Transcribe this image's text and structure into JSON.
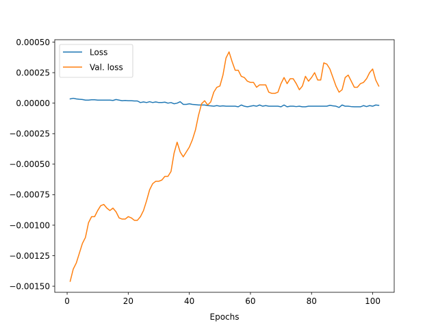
{
  "chart_data": {
    "type": "line",
    "title": "",
    "xlabel": "Epochs",
    "ylabel": "",
    "xlim": [
      -4.05,
      107.05
    ],
    "ylim": [
      -0.00155,
      0.00052
    ],
    "xticks": [
      0,
      20,
      40,
      60,
      80,
      100
    ],
    "xtick_labels": [
      "0",
      "20",
      "40",
      "60",
      "80",
      "100"
    ],
    "yticks": [
      -0.0015,
      -0.00125,
      -0.001,
      -0.00075,
      -0.0005,
      -0.00025,
      0.0,
      0.00025,
      0.0005
    ],
    "ytick_labels": [
      "−0.00150",
      "−0.00125",
      "−0.00100",
      "−0.00075",
      "−0.00050",
      "−0.00025",
      "0.00000",
      "0.00025",
      "0.00050"
    ],
    "grid": false,
    "legend_position": "upper left",
    "colors": {
      "loss": "#1f77b4",
      "val_loss": "#ff7f0e"
    },
    "series": [
      {
        "name": "Loss",
        "color": "#1f77b4",
        "x": [
          1,
          2,
          3,
          4,
          5,
          6,
          7,
          8,
          9,
          10,
          11,
          12,
          13,
          14,
          15,
          16,
          17,
          18,
          19,
          20,
          21,
          22,
          23,
          24,
          25,
          26,
          27,
          28,
          29,
          30,
          31,
          32,
          33,
          34,
          35,
          36,
          37,
          38,
          39,
          40,
          41,
          42,
          43,
          44,
          45,
          46,
          47,
          48,
          49,
          50,
          51,
          52,
          53,
          54,
          55,
          56,
          57,
          58,
          59,
          60,
          61,
          62,
          63,
          64,
          65,
          66,
          67,
          68,
          69,
          70,
          71,
          72,
          73,
          74,
          75,
          76,
          77,
          78,
          79,
          80,
          81,
          82,
          83,
          84,
          85,
          86,
          87,
          88,
          89,
          90,
          91,
          92,
          93,
          94,
          95,
          96,
          97,
          98,
          99,
          100,
          101,
          102
        ],
        "y": [
          3.5e-05,
          4e-05,
          3.5e-05,
          3.2e-05,
          3e-05,
          2.5e-05,
          2.5e-05,
          2.8e-05,
          2.8e-05,
          2.5e-05,
          2.5e-05,
          2.5e-05,
          2.5e-05,
          2.5e-05,
          2.2e-05,
          3e-05,
          2.5e-05,
          2e-05,
          2.2e-05,
          2e-05,
          2e-05,
          1.8e-05,
          1.8e-05,
          5e-06,
          1e-05,
          5e-06,
          1.2e-05,
          5e-06,
          1e-05,
          5e-06,
          5e-06,
          8e-06,
          0.0,
          5e-06,
          -5e-06,
          0.0,
          1.2e-05,
          -1e-05,
          -1e-05,
          -5e-06,
          -1e-05,
          -1.2e-05,
          -1.5e-05,
          -1.5e-05,
          -1.5e-05,
          -2e-05,
          -2.2e-05,
          -2.5e-05,
          -2e-05,
          -2.5e-05,
          -2.2e-05,
          -2.5e-05,
          -2.5e-05,
          -2.5e-05,
          -2.5e-05,
          -3e-05,
          -1.5e-05,
          -2.5e-05,
          -3e-05,
          -2.5e-05,
          -2e-05,
          -2.5e-05,
          -1.5e-05,
          -2.5e-05,
          -2e-05,
          -2.5e-05,
          -2.5e-05,
          -2.5e-05,
          -2.5e-05,
          -3e-05,
          -1.5e-05,
          -3e-05,
          -2.5e-05,
          -2.5e-05,
          -2.8e-05,
          -2.5e-05,
          -3e-05,
          -3e-05,
          -2.5e-05,
          -2.5e-05,
          -2.5e-05,
          -2.5e-05,
          -2.5e-05,
          -2.5e-05,
          -2.5e-05,
          -1.8e-05,
          -2.2e-05,
          -2.5e-05,
          -3.5e-05,
          -1.5e-05,
          -2.5e-05,
          -2.5e-05,
          -2.8e-05,
          -3e-05,
          -3e-05,
          -3e-05,
          -2e-05,
          -2.8e-05,
          -2e-05,
          -2.5e-05,
          -1.5e-05,
          -1.8e-05
        ]
      },
      {
        "name": "Val. loss",
        "color": "#ff7f0e",
        "x": [
          1,
          2,
          3,
          4,
          5,
          6,
          7,
          8,
          9,
          10,
          11,
          12,
          13,
          14,
          15,
          16,
          17,
          18,
          19,
          20,
          21,
          22,
          23,
          24,
          25,
          26,
          27,
          28,
          29,
          30,
          31,
          32,
          33,
          34,
          35,
          36,
          37,
          38,
          39,
          40,
          41,
          42,
          43,
          44,
          45,
          46,
          47,
          48,
          49,
          50,
          51,
          52,
          53,
          54,
          55,
          56,
          57,
          58,
          59,
          60,
          61,
          62,
          63,
          64,
          65,
          66,
          67,
          68,
          69,
          70,
          71,
          72,
          73,
          74,
          75,
          76,
          77,
          78,
          79,
          80,
          81,
          82,
          83,
          84,
          85,
          86,
          87,
          88,
          89,
          90,
          91,
          92,
          93,
          94,
          95,
          96,
          97,
          98,
          99,
          100,
          101,
          102
        ],
        "y": [
          -0.00146,
          -0.00136,
          -0.00131,
          -0.00123,
          -0.00115,
          -0.0011,
          -0.00098,
          -0.00093,
          -0.00093,
          -0.00088,
          -0.00084,
          -0.00083,
          -0.00086,
          -0.00088,
          -0.00086,
          -0.00089,
          -0.00094,
          -0.00095,
          -0.00095,
          -0.00093,
          -0.00094,
          -0.00096,
          -0.00096,
          -0.00093,
          -0.00088,
          -0.0008,
          -0.00071,
          -0.00066,
          -0.00064,
          -0.00064,
          -0.00063,
          -0.0006,
          -0.0006,
          -0.00056,
          -0.00041,
          -0.00032,
          -0.0004,
          -0.00044,
          -0.0004,
          -0.00036,
          -0.0003,
          -0.00022,
          -0.0001,
          -5e-06,
          2e-05,
          -1.5e-05,
          1e-05,
          9e-05,
          0.00013,
          0.00014,
          0.00023,
          0.00037,
          0.00042,
          0.00034,
          0.00027,
          0.00027,
          0.00022,
          0.00021,
          0.00018,
          0.00017,
          0.00017,
          0.00013,
          0.00015,
          0.00015,
          0.00015,
          9e-05,
          8e-05,
          8e-05,
          9e-05,
          0.00016,
          0.00021,
          0.00016,
          0.0002,
          0.0002,
          0.00016,
          0.00011,
          0.00014,
          0.00022,
          0.00018,
          0.00021,
          0.00025,
          0.00019,
          0.00019,
          0.00033,
          0.00032,
          0.00028,
          0.00021,
          0.00014,
          9e-05,
          0.00011,
          0.00021,
          0.00023,
          0.00018,
          0.00013,
          0.00013,
          0.00016,
          0.00017,
          0.0002,
          0.00025,
          0.00028,
          0.00019,
          0.00014
        ]
      }
    ]
  }
}
